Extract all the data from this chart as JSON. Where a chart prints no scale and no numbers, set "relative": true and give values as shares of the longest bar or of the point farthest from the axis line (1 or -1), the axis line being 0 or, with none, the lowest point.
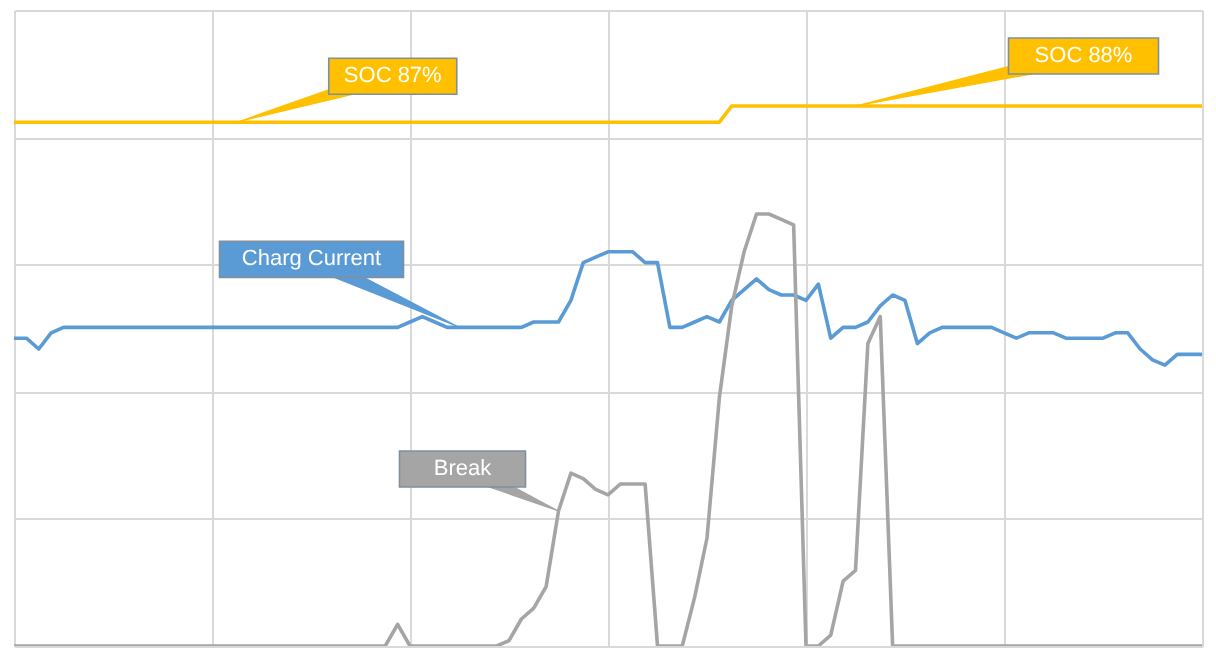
{
  "chart_data": {
    "type": "line",
    "relative": true,
    "grid": true,
    "categories": [
      null,
      null,
      null,
      null,
      null,
      null,
      null,
      null,
      null,
      null,
      null,
      null,
      null,
      null,
      null,
      null,
      null,
      null,
      null,
      null,
      null,
      null,
      null,
      null,
      null,
      null,
      null,
      null,
      null,
      null,
      null,
      null,
      null,
      null,
      null,
      null,
      null,
      null,
      null,
      null,
      null,
      null,
      null,
      null,
      null,
      null,
      null,
      null,
      null,
      null,
      null,
      null,
      null,
      null,
      null,
      null,
      null,
      null,
      null,
      null,
      null,
      null,
      null,
      null,
      null,
      null,
      null,
      null,
      null,
      null,
      null,
      null,
      null,
      null,
      null,
      null,
      null,
      null,
      null,
      null,
      null,
      null,
      null,
      null,
      null,
      null,
      null,
      null,
      null,
      null,
      null,
      null,
      null,
      null,
      null,
      null,
      null
    ],
    "series": [
      {
        "color": "#ffc000",
        "values": [
          0.97,
          0.97,
          0.97,
          0.97,
          0.97,
          0.97,
          0.97,
          0.97,
          0.97,
          0.97,
          0.97,
          0.97,
          0.97,
          0.97,
          0.97,
          0.97,
          0.97,
          0.97,
          0.97,
          0.97,
          0.97,
          0.97,
          0.97,
          0.97,
          0.97,
          0.97,
          0.97,
          0.97,
          0.97,
          0.97,
          0.97,
          0.97,
          0.97,
          0.97,
          0.97,
          0.97,
          0.97,
          0.97,
          0.97,
          0.97,
          0.97,
          0.97,
          0.97,
          0.97,
          0.97,
          0.97,
          0.97,
          0.97,
          0.97,
          0.97,
          0.97,
          0.97,
          0.97,
          0.97,
          0.97,
          0.97,
          0.97,
          0.97,
          1,
          1,
          1,
          1,
          1,
          1,
          1,
          1,
          1,
          1,
          1,
          1,
          1,
          1,
          1,
          1,
          1,
          1,
          1,
          1,
          1,
          1,
          1,
          1,
          1,
          1,
          1,
          1,
          1,
          1,
          1,
          1,
          1,
          1,
          1,
          1,
          1,
          1,
          1
        ]
      },
      {
        "name": "Charg Current",
        "color": "#5b9bd5",
        "values": [
          0.57,
          0.57,
          0.55,
          0.58,
          0.59,
          0.59,
          0.59,
          0.59,
          0.59,
          0.59,
          0.59,
          0.59,
          0.59,
          0.59,
          0.59,
          0.59,
          0.59,
          0.59,
          0.59,
          0.59,
          0.59,
          0.59,
          0.59,
          0.59,
          0.59,
          0.59,
          0.59,
          0.59,
          0.59,
          0.59,
          0.59,
          0.59,
          0.6,
          0.61,
          0.6,
          0.59,
          0.59,
          0.59,
          0.59,
          0.59,
          0.59,
          0.59,
          0.6,
          0.6,
          0.6,
          0.64,
          0.71,
          0.72,
          0.73,
          0.73,
          0.73,
          0.71,
          0.71,
          0.59,
          0.59,
          0.6,
          0.61,
          0.6,
          0.64,
          0.66,
          0.68,
          0.66,
          0.65,
          0.65,
          0.64,
          0.67,
          0.57,
          0.59,
          0.59,
          0.6,
          0.63,
          0.65,
          0.64,
          0.56,
          0.58,
          0.59,
          0.59,
          0.59,
          0.59,
          0.59,
          0.58,
          0.57,
          0.58,
          0.58,
          0.58,
          0.57,
          0.57,
          0.57,
          0.57,
          0.58,
          0.58,
          0.55,
          0.53,
          0.52,
          0.54,
          0.54,
          0.54
        ]
      },
      {
        "name": "Break",
        "color": "#a5a5a5",
        "values": [
          0,
          0,
          0,
          0,
          0,
          0,
          0,
          0,
          0,
          0,
          0,
          0,
          0,
          0,
          0,
          0,
          0,
          0,
          0,
          0,
          0,
          0,
          0,
          0,
          0,
          0,
          0,
          0,
          0,
          0,
          0,
          0.04,
          0,
          0,
          0,
          0,
          0,
          0,
          0,
          0,
          0.01,
          0.05,
          0.07,
          0.11,
          0.25,
          0.32,
          0.31,
          0.29,
          0.28,
          0.3,
          0.3,
          0.3,
          0,
          0,
          0,
          0.09,
          0.2,
          0.46,
          0.63,
          0.73,
          0.8,
          0.8,
          0.79,
          0.78,
          0,
          0,
          0.02,
          0.12,
          0.14,
          0.56,
          0.61,
          0,
          0,
          0,
          0,
          0,
          0,
          0,
          0,
          0,
          0,
          0,
          0,
          0,
          0,
          0,
          0,
          0,
          0,
          0,
          0,
          0,
          0,
          0,
          0,
          0,
          0
        ]
      }
    ],
    "annotations": [
      {
        "text": "SOC 87%",
        "y": 0.97
      },
      {
        "text": "SOC 88%",
        "y": 1
      }
    ]
  }
}
